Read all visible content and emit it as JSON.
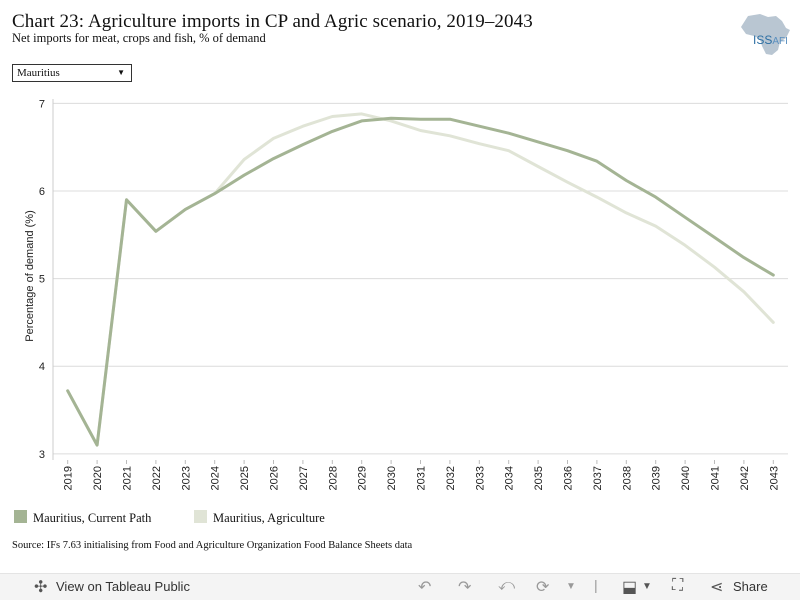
{
  "header": {
    "title": "Chart 23: Agriculture imports in CP and Agric scenario, 2019–2043",
    "subtitle": "Net imports for meat, crops and fish, % of demand",
    "logo_text": "ISS",
    "logo_suffix": "AFI"
  },
  "filter": {
    "selected": "Mauritius"
  },
  "chart_data": {
    "type": "line",
    "title": "Chart 23: Agriculture imports in CP and Agric scenario, 2019–2043",
    "subtitle": "Net imports for meat, crops and fish, % of demand",
    "ylabel": "Percentage of demand (%)",
    "xlabel": "",
    "ylim": [
      2.93,
      7.05
    ],
    "yticks": [
      3,
      4,
      5,
      6,
      7
    ],
    "grid": true,
    "legend": "bottom-left",
    "x": [
      "2019",
      "2020",
      "2021",
      "2022",
      "2023",
      "2024",
      "2025",
      "2026",
      "2027",
      "2028",
      "2029",
      "2030",
      "2031",
      "2032",
      "2033",
      "2034",
      "2035",
      "2036",
      "2037",
      "2038",
      "2039",
      "2040",
      "2041",
      "2042",
      "2043"
    ],
    "series": [
      {
        "name": "Mauritius, Current Path",
        "color": "#a4b494",
        "values": [
          3.72,
          3.1,
          5.9,
          5.54,
          5.79,
          5.97,
          6.18,
          6.37,
          6.53,
          6.68,
          6.8,
          6.83,
          6.82,
          6.82,
          6.74,
          6.66,
          6.56,
          6.46,
          6.34,
          6.12,
          5.93,
          5.7,
          5.47,
          5.24,
          5.04
        ]
      },
      {
        "name": "Mauritius, Agriculture",
        "color": "#e0e4d6",
        "values": [
          3.72,
          3.1,
          5.9,
          5.54,
          5.79,
          5.97,
          6.36,
          6.6,
          6.74,
          6.85,
          6.88,
          6.8,
          6.69,
          6.63,
          6.54,
          6.46,
          6.28,
          6.1,
          5.93,
          5.75,
          5.6,
          5.38,
          5.13,
          4.85,
          4.5
        ]
      }
    ]
  },
  "source": "Source: IFs 7.63 initialising from Food and Agriculture Organization Food Balance Sheets data",
  "toolbar": {
    "view_label": "View on Tableau Public",
    "share_label": "Share"
  }
}
